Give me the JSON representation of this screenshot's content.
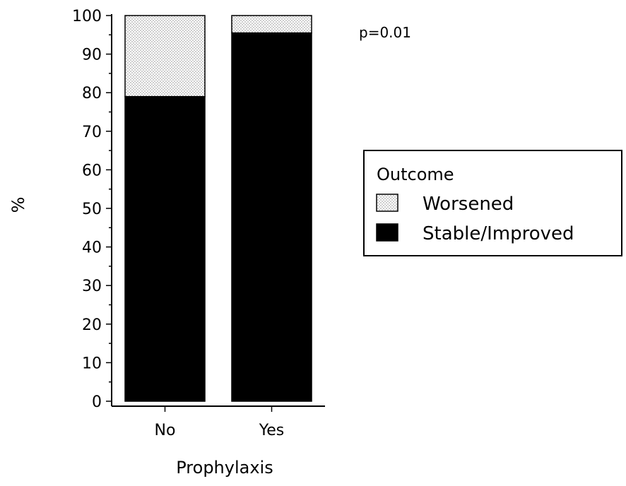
{
  "chart_data": {
    "type": "bar",
    "stacked": true,
    "categories": [
      "No",
      "Yes"
    ],
    "series": [
      {
        "name": "Stable/Improved",
        "values": [
          79,
          95.5
        ],
        "color": "#000000",
        "pattern": "solid"
      },
      {
        "name": "Worsened",
        "values": [
          21,
          4.5
        ],
        "color": "#ffffff",
        "pattern": "dotted"
      }
    ],
    "xlabel": "Prophylaxis",
    "ylabel": "%",
    "ylim": [
      0,
      100
    ],
    "yticks": [
      0,
      10,
      20,
      30,
      40,
      50,
      60,
      70,
      80,
      90,
      100
    ],
    "annotation": "p=0.01",
    "legend": {
      "title": "Outcome",
      "placement": "right",
      "entries": [
        "Worsened",
        "Stable/Improved"
      ]
    },
    "grid": false
  }
}
